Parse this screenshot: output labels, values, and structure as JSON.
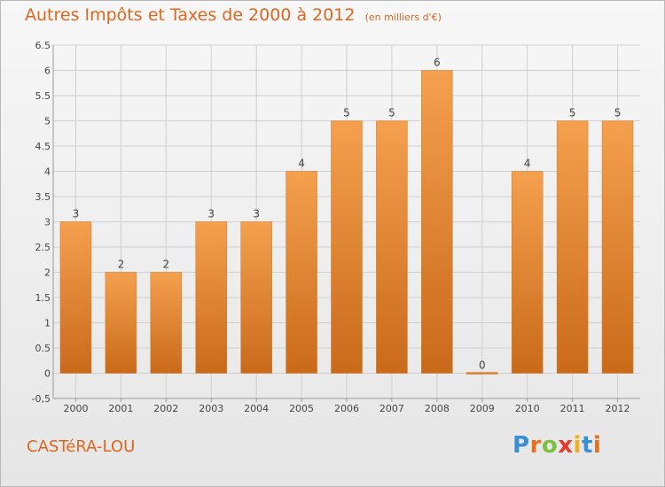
{
  "title": "Autres Impôts et Taxes de 2000 à 2012",
  "unit": "(en milliers d'€)",
  "commune": "CASTéRA-LOU",
  "logo": {
    "letters": [
      "P",
      "r",
      "o",
      "x",
      "i",
      "t",
      "i"
    ],
    "colors": [
      "#3a8fd0",
      "#e8701c",
      "#7ac043",
      "#e43d2f",
      "#f2b01e",
      "#3a8fd0",
      "#e8701c"
    ]
  },
  "colors": {
    "bar": "#f0923c",
    "bar_dark": "#c96a1a",
    "title": "#e0661d",
    "grid": "#cfcfcf"
  },
  "chart_data": {
    "type": "bar",
    "categories": [
      "2000",
      "2001",
      "2002",
      "2003",
      "2004",
      "2005",
      "2006",
      "2007",
      "2008",
      "2009",
      "2010",
      "2011",
      "2012"
    ],
    "values": [
      3,
      2,
      2,
      3,
      3,
      4,
      5,
      5,
      6,
      0,
      4,
      5,
      5
    ],
    "data_labels": [
      "3",
      "2",
      "2",
      "3",
      "3",
      "4",
      "5",
      "5",
      "6",
      "0",
      "4",
      "5",
      "5"
    ],
    "ylim": [
      -0.5,
      6.5
    ],
    "yticks": [
      "-0,5",
      "0",
      "0.5",
      "1",
      "1.5",
      "2",
      "2.5",
      "3",
      "3.5",
      "4",
      "4.5",
      "5",
      "5.5",
      "6",
      "6.5"
    ],
    "ytick_values": [
      -0.5,
      0,
      0.5,
      1,
      1.5,
      2,
      2.5,
      3,
      3.5,
      4,
      4.5,
      5,
      5.5,
      6,
      6.5
    ],
    "grid": true,
    "xlabel": "",
    "ylabel": ""
  }
}
